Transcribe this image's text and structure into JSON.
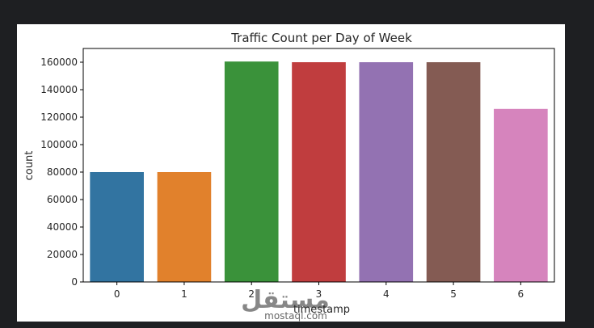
{
  "chart_data": {
    "type": "bar",
    "title": "Traffic Count per Day of Week",
    "xlabel": "timestamp",
    "ylabel": "count",
    "categories": [
      "0",
      "1",
      "2",
      "3",
      "4",
      "5",
      "6"
    ],
    "values": [
      80000,
      80000,
      160500,
      160000,
      160000,
      160000,
      126000
    ],
    "colors": [
      "#3274a1",
      "#e1812c",
      "#3a923a",
      "#c03d3e",
      "#9372b2",
      "#845b53",
      "#d684bd"
    ],
    "ylim": [
      0,
      170000
    ],
    "yticks": [
      0,
      20000,
      40000,
      60000,
      80000,
      100000,
      120000,
      140000,
      160000
    ],
    "grid": false,
    "legend": "none"
  },
  "watermark": {
    "arabic": "مستقل",
    "latin": "mostaql.com"
  }
}
